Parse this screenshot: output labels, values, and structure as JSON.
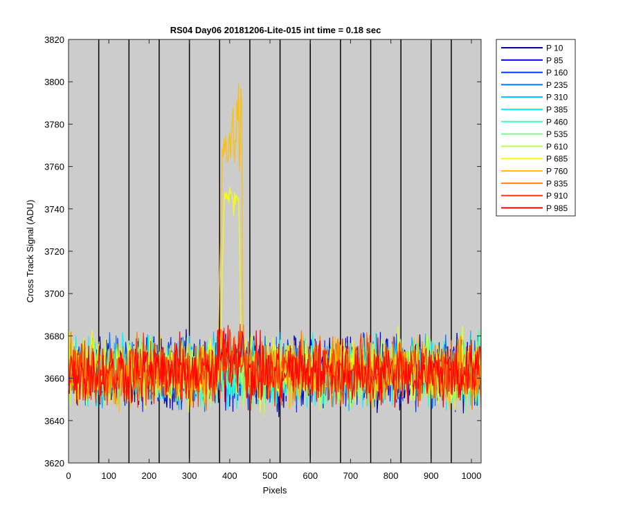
{
  "chart_data": {
    "type": "line",
    "title": "RS04 Day06 20181206-Lite-015 int time = 0.18 sec",
    "xlabel": "Pixels",
    "ylabel": "Cross Track Signal (ADU)",
    "xlim": [
      0,
      1024
    ],
    "ylim": [
      3620,
      3820
    ],
    "xticks": [
      0,
      100,
      200,
      300,
      400,
      500,
      600,
      700,
      800,
      900,
      1000
    ],
    "yticks": [
      3620,
      3640,
      3660,
      3680,
      3700,
      3720,
      3740,
      3760,
      3780,
      3800,
      3820
    ],
    "vertical_lines_x": [
      75,
      150,
      225,
      300,
      375,
      450,
      525,
      600,
      675,
      750,
      825,
      900,
      950
    ],
    "plot_background": "#cccccc",
    "legend_position": "outside-right-top",
    "baseline_mean": 3663,
    "baseline_noise_range": [
      3636,
      3689
    ],
    "feature": {
      "x_start": 370,
      "x_end": 435,
      "dominant_series": "P 760",
      "approx_mean": 3770,
      "approx_peak": 3806
    },
    "series": [
      {
        "name": "P 10",
        "color": "#00008f"
      },
      {
        "name": "P 85",
        "color": "#0000db"
      },
      {
        "name": "P 160",
        "color": "#0033ff"
      },
      {
        "name": "P 235",
        "color": "#0075ff"
      },
      {
        "name": "P 310",
        "color": "#00baff"
      },
      {
        "name": "P 385",
        "color": "#00f9ff"
      },
      {
        "name": "P 460",
        "color": "#33ffcc"
      },
      {
        "name": "P 535",
        "color": "#75ff8a"
      },
      {
        "name": "P 610",
        "color": "#baff45"
      },
      {
        "name": "P 685",
        "color": "#f9ff00"
      },
      {
        "name": "P 760",
        "color": "#ffbf00"
      },
      {
        "name": "P 835",
        "color": "#ff7a00"
      },
      {
        "name": "P 910",
        "color": "#ff3300"
      },
      {
        "name": "P 985",
        "color": "#ff0000"
      }
    ]
  }
}
